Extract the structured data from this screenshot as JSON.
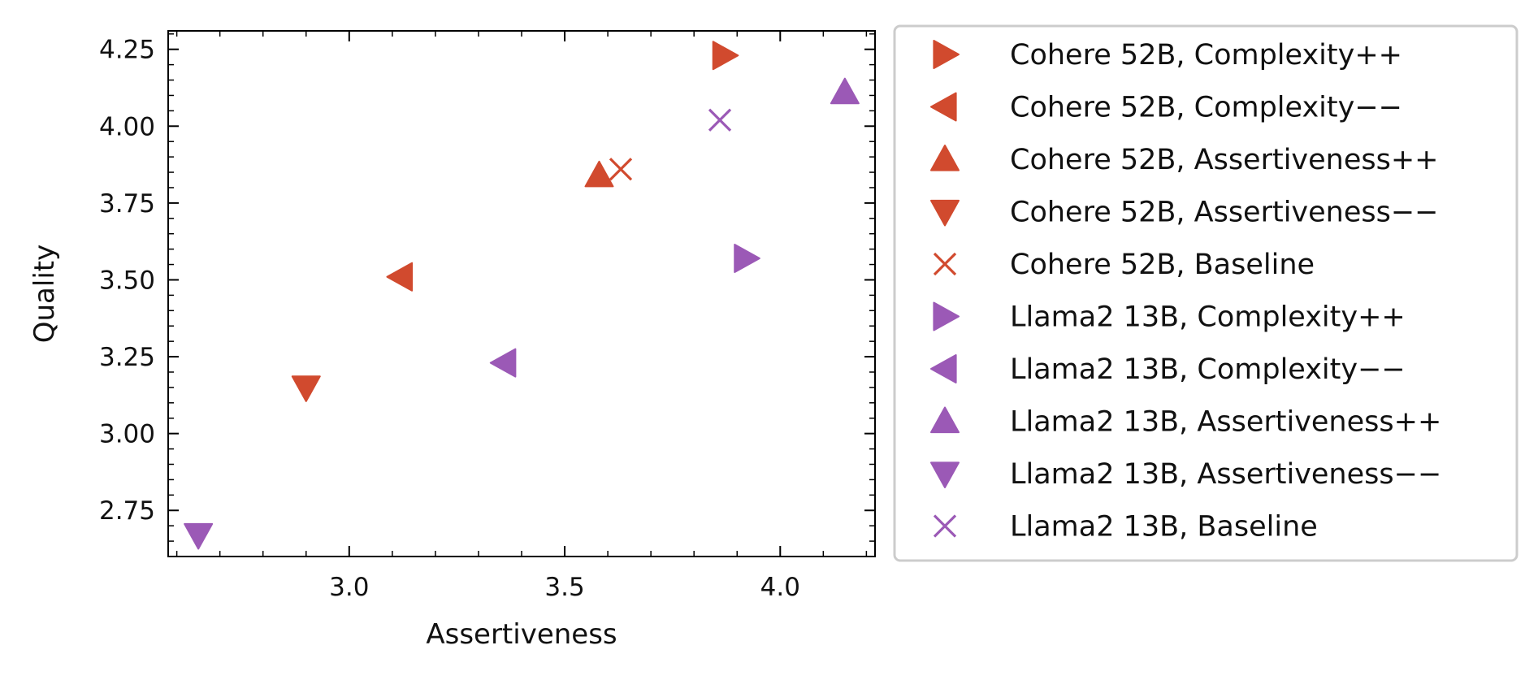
{
  "chart_data": {
    "type": "scatter",
    "title": "",
    "xlabel": "Assertiveness",
    "ylabel": "Quality",
    "xlim": [
      2.58,
      4.22
    ],
    "ylim": [
      2.6,
      4.31
    ],
    "xticks": [
      3.0,
      3.5,
      4.0
    ],
    "xtick_labels": [
      "3.0",
      "3.5",
      "4.0"
    ],
    "yticks": [
      2.75,
      3.0,
      3.25,
      3.5,
      3.75,
      4.0,
      4.25
    ],
    "ytick_labels": [
      "2.75",
      "3.00",
      "3.25",
      "3.50",
      "3.75",
      "4.00",
      "4.25"
    ],
    "grid": false,
    "legend_position": "outside-right",
    "series": [
      {
        "name": "Cohere 52B, Complexity++",
        "marker": "triangle-right",
        "color": "#d14a2e",
        "x": 3.87,
        "y": 4.23
      },
      {
        "name": "Cohere 52B, Complexity−−",
        "marker": "triangle-left",
        "color": "#d14a2e",
        "x": 3.12,
        "y": 3.51
      },
      {
        "name": "Cohere 52B, Assertiveness++",
        "marker": "triangle-up",
        "color": "#d14a2e",
        "x": 3.58,
        "y": 3.84
      },
      {
        "name": "Cohere 52B, Assertiveness−−",
        "marker": "triangle-down",
        "color": "#d14a2e",
        "x": 2.9,
        "y": 3.15
      },
      {
        "name": "Cohere 52B, Baseline",
        "marker": "x",
        "color": "#d14a2e",
        "x": 3.63,
        "y": 3.86
      },
      {
        "name": "Llama2 13B, Complexity++",
        "marker": "triangle-right",
        "color": "#9b59b6",
        "x": 3.92,
        "y": 3.57
      },
      {
        "name": "Llama2 13B, Complexity−−",
        "marker": "triangle-left",
        "color": "#9b59b6",
        "x": 3.36,
        "y": 3.23
      },
      {
        "name": "Llama2 13B, Assertiveness++",
        "marker": "triangle-up",
        "color": "#9b59b6",
        "x": 4.15,
        "y": 4.11
      },
      {
        "name": "Llama2 13B, Assertiveness−−",
        "marker": "triangle-down",
        "color": "#9b59b6",
        "x": 2.65,
        "y": 2.67
      },
      {
        "name": "Llama2 13B, Baseline",
        "marker": "x",
        "color": "#9b59b6",
        "x": 3.86,
        "y": 4.02
      }
    ]
  }
}
